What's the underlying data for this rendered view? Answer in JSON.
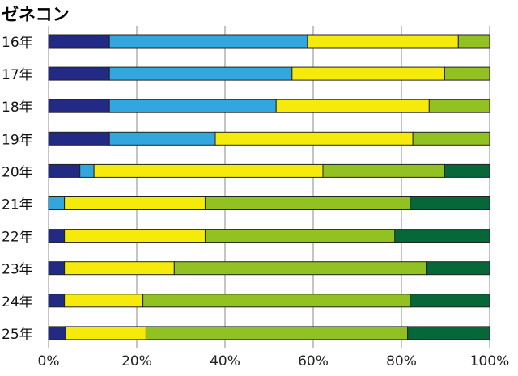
{
  "chart_data": {
    "type": "bar",
    "orientation": "horizontal",
    "stacked": "percent",
    "title": "ゼネコン",
    "xlabel": "",
    "ylabel": "",
    "xlim": [
      0,
      100
    ],
    "x_ticks": [
      "0%",
      "20%",
      "40%",
      "60%",
      "80%",
      "100%"
    ],
    "grid": "vertical",
    "categories": [
      "16年",
      "17年",
      "18年",
      "19年",
      "20年",
      "21年",
      "22年",
      "23年",
      "24年",
      "25年"
    ],
    "series": [
      {
        "name": "",
        "color": "#232a86",
        "values": [
          13.8,
          13.8,
          13.8,
          13.8,
          7.1,
          0,
          3.6,
          3.6,
          3.6,
          3.9
        ]
      },
      {
        "name": "",
        "color": "#31a6df",
        "values": [
          44.9,
          41.4,
          37.8,
          24.0,
          3.2,
          3.6,
          0,
          0,
          0,
          0
        ]
      },
      {
        "name": "",
        "color": "#f5ea0a",
        "values": [
          34.2,
          34.6,
          34.7,
          44.8,
          51.9,
          31.9,
          31.9,
          24.9,
          17.8,
          18.2
        ]
      },
      {
        "name": "",
        "color": "#92c122",
        "values": [
          7.1,
          10.2,
          13.7,
          17.4,
          27.6,
          46.5,
          43.0,
          57.1,
          60.6,
          59.3
        ]
      },
      {
        "name": "",
        "color": "#066838",
        "values": [
          0,
          0,
          0,
          0,
          10.2,
          18.0,
          21.5,
          14.4,
          18.0,
          18.6
        ]
      }
    ]
  }
}
